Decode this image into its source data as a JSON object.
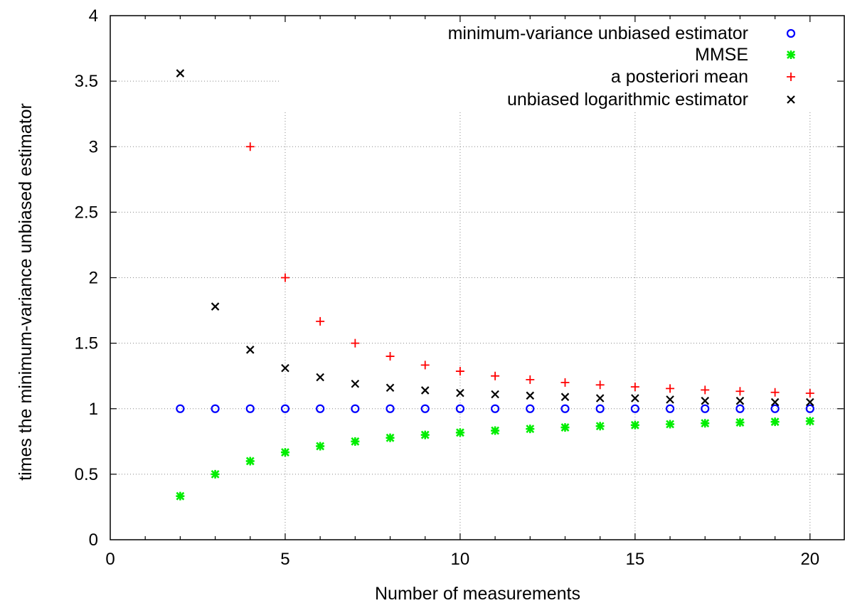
{
  "chart_data": {
    "type": "scatter",
    "title": "",
    "xlabel": "Number of measurements",
    "ylabel": "times the minimum-variance unbiased estimator",
    "xlim": [
      0,
      21
    ],
    "ylim": [
      0,
      4
    ],
    "xticks": [
      0,
      5,
      10,
      15,
      20
    ],
    "yticks": [
      0,
      0.5,
      1,
      1.5,
      2,
      2.5,
      3,
      3.5,
      4
    ],
    "grid": true,
    "legend_position": "top-right",
    "x": [
      2,
      3,
      4,
      5,
      6,
      7,
      8,
      9,
      10,
      11,
      12,
      13,
      14,
      15,
      16,
      17,
      18,
      19,
      20
    ],
    "series": [
      {
        "name": "minimum-variance unbiased estimator",
        "marker": "circle",
        "color": "#0000ff",
        "values": [
          1,
          1,
          1,
          1,
          1,
          1,
          1,
          1,
          1,
          1,
          1,
          1,
          1,
          1,
          1,
          1,
          1,
          1,
          1
        ]
      },
      {
        "name": "MMSE",
        "marker": "asterisk",
        "color": "#00ee00",
        "values": [
          0.333,
          0.5,
          0.6,
          0.667,
          0.714,
          0.75,
          0.778,
          0.8,
          0.818,
          0.833,
          0.846,
          0.857,
          0.867,
          0.875,
          0.882,
          0.889,
          0.895,
          0.9,
          0.905
        ]
      },
      {
        "name": "a posteriori mean",
        "marker": "plus",
        "color": "#ff0000",
        "values": [
          null,
          null,
          3.0,
          2.0,
          1.667,
          1.5,
          1.4,
          1.333,
          1.286,
          1.25,
          1.222,
          1.2,
          1.182,
          1.167,
          1.154,
          1.143,
          1.133,
          1.125,
          1.118
        ]
      },
      {
        "name": "unbiased logarithmic estimator",
        "marker": "cross",
        "color": "#000000",
        "values": [
          3.56,
          1.78,
          1.45,
          1.31,
          1.24,
          1.19,
          1.16,
          1.14,
          1.12,
          1.11,
          1.1,
          1.09,
          1.08,
          1.08,
          1.07,
          1.06,
          1.06,
          1.05,
          1.05
        ]
      }
    ]
  }
}
